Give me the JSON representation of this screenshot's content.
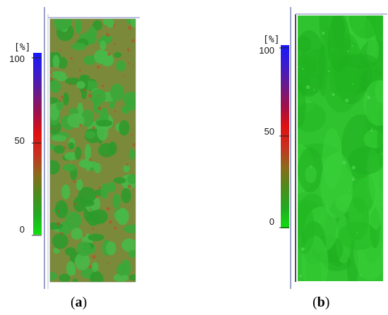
{
  "figure": {
    "panels": [
      {
        "id": "a",
        "caption_open": "(",
        "caption_letter": "a",
        "caption_close": ")",
        "scale": {
          "unit": "[%]",
          "ticks": [
            "100",
            "50",
            "0"
          ],
          "gradient_colors": [
            "#1818ff",
            "#3b1ccc",
            "#6a1a8a",
            "#a0104a",
            "#e01010",
            "#c83020",
            "#8c6a1a",
            "#4c8c1a",
            "#22aa22",
            "#10e010"
          ]
        },
        "map": {
          "pattern": "mottled",
          "base_color": "#7b8a3a",
          "patch_colors": [
            "#3aa83a",
            "#48b848",
            "#2e9a2e"
          ],
          "speck_color": "#c04a2a"
        }
      },
      {
        "id": "b",
        "caption_open": "(",
        "caption_letter": "b",
        "caption_close": ")",
        "scale": {
          "unit": "[%]",
          "ticks": [
            "100",
            "50",
            "0"
          ],
          "gradient_colors": [
            "#1818ff",
            "#3b1ccc",
            "#6a1a8a",
            "#a0104a",
            "#e01010",
            "#c83020",
            "#8c6a1a",
            "#4c8c1a",
            "#22aa22",
            "#10e010"
          ]
        },
        "map": {
          "pattern": "streaked",
          "base_color": "#2fc42f",
          "patch_colors": [
            "#1fae1f",
            "#38d038",
            "#22b822"
          ],
          "speck_color": "#5ad85a"
        }
      }
    ]
  }
}
